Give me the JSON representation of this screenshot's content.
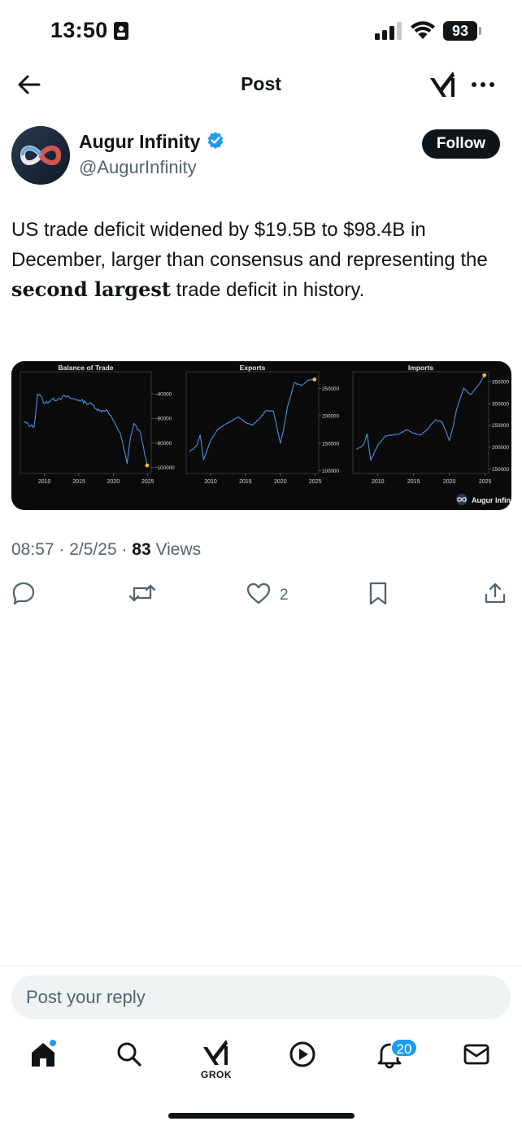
{
  "status_bar": {
    "time": "13:50",
    "battery": "93",
    "icons": [
      "id-card-icon",
      "signal-icon",
      "wifi-icon",
      "battery-icon"
    ]
  },
  "nav": {
    "title": "Post",
    "icons": [
      "back-arrow-icon",
      "grok-icon",
      "more-icon"
    ]
  },
  "author": {
    "name": "Augur Infinity",
    "handle": "@AugurInfinity",
    "verified": true,
    "follow_label": "Follow"
  },
  "post": {
    "text_part1": "US trade deficit widened by $19.5B to $98.4B in December, larger than consensus and representing the ",
    "text_bold": "second largest",
    "text_part2": " trade deficit in history."
  },
  "media": {
    "watermark": "Augur Infinity"
  },
  "meta": {
    "time": "08:57",
    "date": "2/5/25",
    "views_count": "83",
    "views_label": "Views"
  },
  "actions": {
    "reply_count": "",
    "repost_count": "",
    "like_count": "2",
    "icons": [
      "reply-icon",
      "repost-icon",
      "like-icon",
      "bookmark-icon",
      "share-icon"
    ]
  },
  "reply": {
    "placeholder": "Post your reply"
  },
  "tab_bar": {
    "grok_label": "GROK",
    "notification_count": "20",
    "icons": [
      "home-icon",
      "search-icon",
      "grok-icon",
      "video-icon",
      "notifications-icon",
      "messages-icon"
    ]
  },
  "colors": {
    "accent": "#1d9bf0",
    "text": "#0f1419",
    "secondary": "#536471",
    "chart_line": "#4a90e2",
    "chart_endpoint": "#f5b82e"
  },
  "chart_data": [
    {
      "type": "line",
      "title": "Balance of Trade",
      "x_ticks": [
        "2010",
        "2015",
        "2020",
        "2025"
      ],
      "y_ticks": [
        -40000,
        -60000,
        -80000,
        -100000
      ],
      "x": [
        2007,
        2008,
        2008.5,
        2009,
        2009.5,
        2010,
        2011,
        2012,
        2013,
        2014,
        2015,
        2016,
        2017,
        2018,
        2019,
        2020,
        2020.5,
        2021,
        2022,
        2022.5,
        2023,
        2024,
        2024.9
      ],
      "y": [
        -63000,
        -66000,
        -67000,
        -40000,
        -42000,
        -48000,
        -45000,
        -44000,
        -42000,
        -44000,
        -45000,
        -47000,
        -49000,
        -54000,
        -53000,
        -62000,
        -67000,
        -72000,
        -97000,
        -75000,
        -64000,
        -73000,
        -98400
      ]
    },
    {
      "type": "line",
      "title": "Exports",
      "x_ticks": [
        "2010",
        "2015",
        "2020",
        "2025"
      ],
      "y_ticks": [
        250000,
        200000,
        150000,
        100000
      ],
      "x": [
        2007,
        2008,
        2008.5,
        2009,
        2010,
        2011,
        2012,
        2013,
        2014,
        2015,
        2016,
        2017,
        2018,
        2019,
        2020,
        2020.5,
        2021,
        2022,
        2023,
        2024,
        2024.9
      ],
      "y": [
        135000,
        145000,
        165000,
        120000,
        155000,
        175000,
        184000,
        190000,
        198000,
        188000,
        183000,
        195000,
        210000,
        208000,
        150000,
        178000,
        215000,
        260000,
        255000,
        265000,
        266000
      ]
    },
    {
      "type": "line",
      "title": "Imports",
      "x_ticks": [
        "2010",
        "2015",
        "2020",
        "2025"
      ],
      "y_ticks": [
        350000,
        300000,
        250000,
        200000,
        150000
      ],
      "x": [
        2007,
        2008,
        2008.5,
        2009,
        2010,
        2011,
        2012,
        2013,
        2014,
        2015,
        2016,
        2017,
        2018,
        2019,
        2020,
        2020.5,
        2021,
        2022,
        2023,
        2024,
        2024.9
      ],
      "y": [
        195000,
        205000,
        230000,
        170000,
        205000,
        225000,
        228000,
        230000,
        240000,
        232000,
        228000,
        242000,
        262000,
        258000,
        215000,
        245000,
        285000,
        335000,
        320000,
        340000,
        364000
      ]
    }
  ]
}
